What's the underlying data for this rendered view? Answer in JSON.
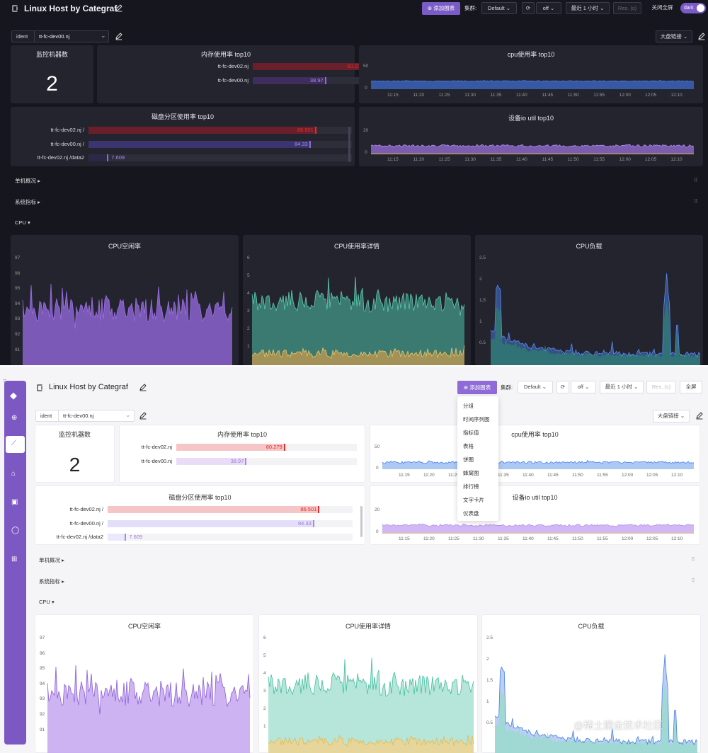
{
  "dashboard": {
    "title": "Linux Host by Categraf"
  },
  "toolbar": {
    "add_chart": "添加图表",
    "cluster_label": "集群:",
    "cluster_value": "Default",
    "refresh_value": "off",
    "time_range": "最近 1 小时",
    "res_placeholder": "Res. (s)",
    "close_fullscreen": "关闭全屏",
    "fullscreen": "全屏",
    "theme": "dark"
  },
  "filter": {
    "ident_label": "ident",
    "ident_value": "tt-fc-dev00.nj",
    "links_label": "大盘链接"
  },
  "panels": {
    "machine_count": {
      "title": "监控机器数",
      "value": "2"
    },
    "mem_top": {
      "title": "内存使用率 top10",
      "rows": [
        {
          "label": "tt-fc-dev02.nj",
          "value": "60.279",
          "pct": 0.6028
        },
        {
          "label": "tt-fc-dev00.nj",
          "value": "38.97",
          "pct": 0.3897
        }
      ]
    },
    "cpu_top": {
      "title": "cpu使用率 top10",
      "yticks": [
        "50",
        "0"
      ]
    },
    "disk_top": {
      "title": "磁盘分区使用率 top10",
      "rows": [
        {
          "label": "tt-fc-dev02.nj /",
          "value": "86.501",
          "pct": 0.865
        },
        {
          "label": "tt-fc-dev00.nj /",
          "value": "84.33",
          "pct": 0.8433
        },
        {
          "label": "tt-fc-dev02.nj /data2",
          "value": "7.609",
          "pct": 0.0761
        }
      ]
    },
    "io_top": {
      "title": "设备io util top10",
      "yticks": [
        "20",
        "0"
      ]
    },
    "cpu_idle": {
      "title": "CPU空闲率",
      "yticks": [
        "97",
        "96",
        "95",
        "94",
        "93",
        "92",
        "91"
      ]
    },
    "cpu_detail": {
      "title": "CPU使用率详情",
      "yticks": [
        "6",
        "5",
        "4",
        "3",
        "2",
        "1"
      ]
    },
    "cpu_load": {
      "title": "CPU负载",
      "yticks": [
        "2.5",
        "2",
        "1.5",
        "1",
        "0.5"
      ]
    }
  },
  "time_ticks": [
    "11:15",
    "11:20",
    "11:25",
    "11:30",
    "11:35",
    "11:40",
    "11:45",
    "11:50",
    "11:55",
    "12:00",
    "12:05",
    "12:10"
  ],
  "sections": {
    "host_overview": "单机概况",
    "system_metrics": "系统指标",
    "cpu": "CPU"
  },
  "add_chart_menu": [
    "分组",
    "时间序列图",
    "指标值",
    "表格",
    "饼图",
    "蜂窝图",
    "排行榜",
    "文字卡片",
    "仪表盘"
  ],
  "sidebar_icons": [
    "logo-icon",
    "target-icon",
    "dashboard-icon",
    "alert-icon",
    "log-icon",
    "user-icon",
    "grid-icon"
  ],
  "watermark": "@稀土掘金技术社区",
  "colors": {
    "accent": "#8e6bd6",
    "dark_bg": "#16161e",
    "dark_panel": "#24242f",
    "sidebar": "#7c58c2",
    "red": "#e02f2f",
    "light_red": "#f6c6c6",
    "purple_fill": "#b48ef0",
    "teal": "#5ecdb3",
    "amber": "#e9c56a",
    "blue": "#4a7fe6"
  }
}
